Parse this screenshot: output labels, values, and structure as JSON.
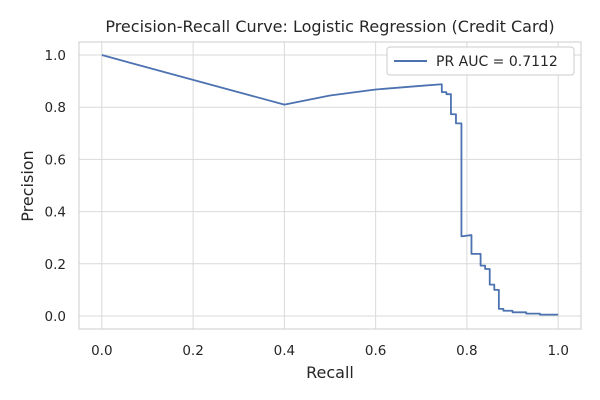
{
  "chart_data": {
    "type": "line",
    "title": "Precision-Recall Curve: Logistic Regression (Credit Card)",
    "xlabel": "Recall",
    "ylabel": "Precision",
    "xlim": [
      -0.05,
      1.05
    ],
    "ylim": [
      -0.05,
      1.05
    ],
    "xticks": [
      0.0,
      0.2,
      0.4,
      0.6,
      0.8,
      1.0
    ],
    "xtick_labels": [
      "0.0",
      "0.2",
      "0.4",
      "0.6",
      "0.8",
      "1.0"
    ],
    "yticks": [
      0.0,
      0.2,
      0.4,
      0.6,
      0.8,
      1.0
    ],
    "ytick_labels": [
      "0.0",
      "0.2",
      "0.4",
      "0.6",
      "0.8",
      "1.0"
    ],
    "grid": true,
    "legend_position": "top-right",
    "series": [
      {
        "name": "PR AUC = 0.7112",
        "color": "#4c72b0",
        "x": [
          0.0,
          0.4,
          0.5,
          0.6,
          0.7,
          0.745,
          0.745,
          0.755,
          0.755,
          0.765,
          0.765,
          0.776,
          0.776,
          0.788,
          0.788,
          0.81,
          0.81,
          0.83,
          0.83,
          0.84,
          0.84,
          0.85,
          0.85,
          0.86,
          0.86,
          0.87,
          0.87,
          0.88,
          0.88,
          0.9,
          0.9,
          0.93,
          0.93,
          0.96,
          0.96,
          1.0
        ],
        "y": [
          1.0,
          0.81,
          0.845,
          0.868,
          0.882,
          0.888,
          0.858,
          0.858,
          0.85,
          0.85,
          0.773,
          0.773,
          0.738,
          0.738,
          0.305,
          0.31,
          0.238,
          0.238,
          0.193,
          0.193,
          0.18,
          0.18,
          0.12,
          0.12,
          0.1,
          0.1,
          0.027,
          0.027,
          0.02,
          0.02,
          0.014,
          0.014,
          0.009,
          0.009,
          0.005,
          0.005
        ]
      }
    ]
  }
}
